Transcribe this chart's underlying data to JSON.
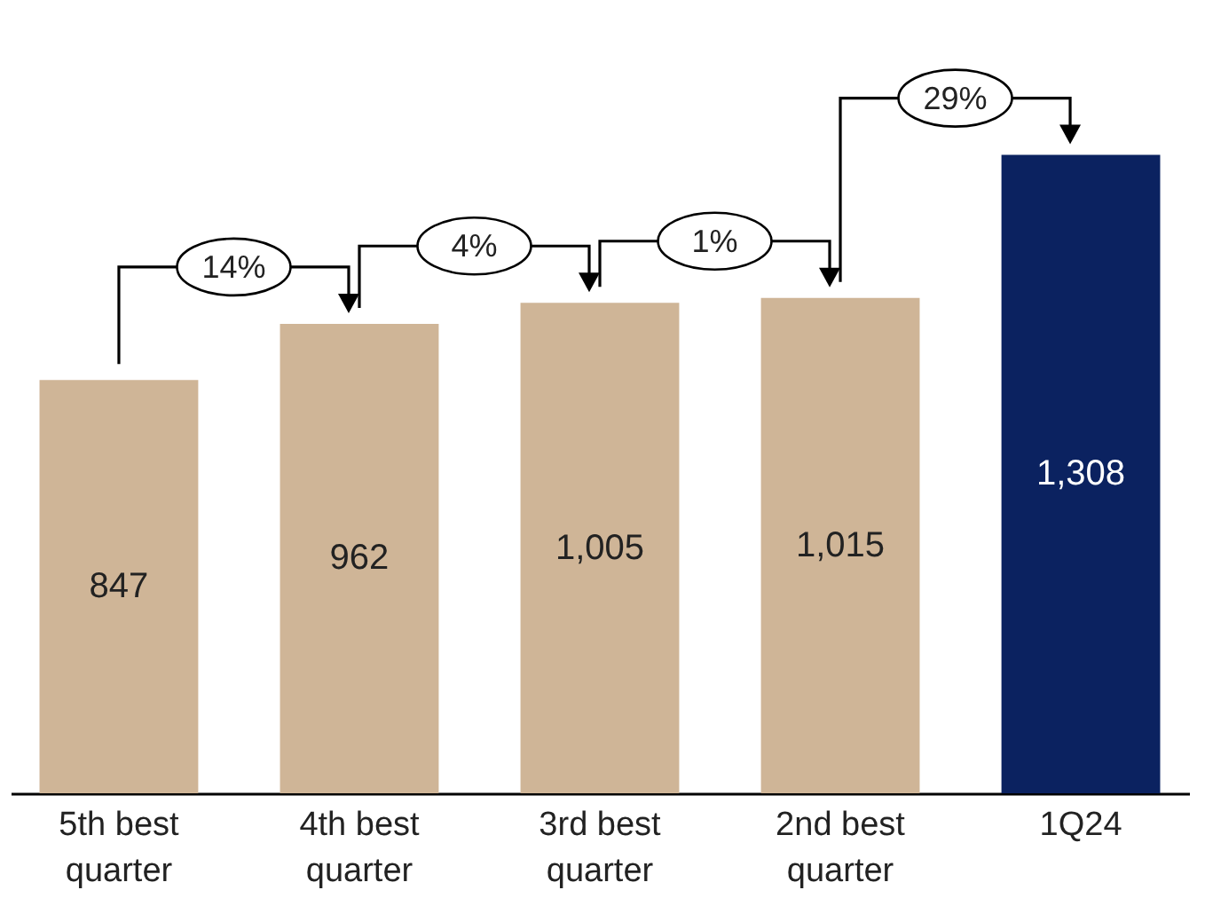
{
  "chart_data": {
    "type": "bar",
    "categories": [
      "5th best quarter",
      "4th best quarter",
      "3rd best quarter",
      "2nd best quarter",
      "1Q24"
    ],
    "values": [
      847,
      962,
      1005,
      1015,
      1308
    ],
    "colors": [
      "#cfb597",
      "#cfb597",
      "#cfb597",
      "#cfb597",
      "#0b2260"
    ],
    "value_labels": [
      "847",
      "962",
      "1,005",
      "1,015",
      "1,308"
    ],
    "annotations": [
      "14%",
      "4%",
      "1%",
      "29%"
    ]
  }
}
